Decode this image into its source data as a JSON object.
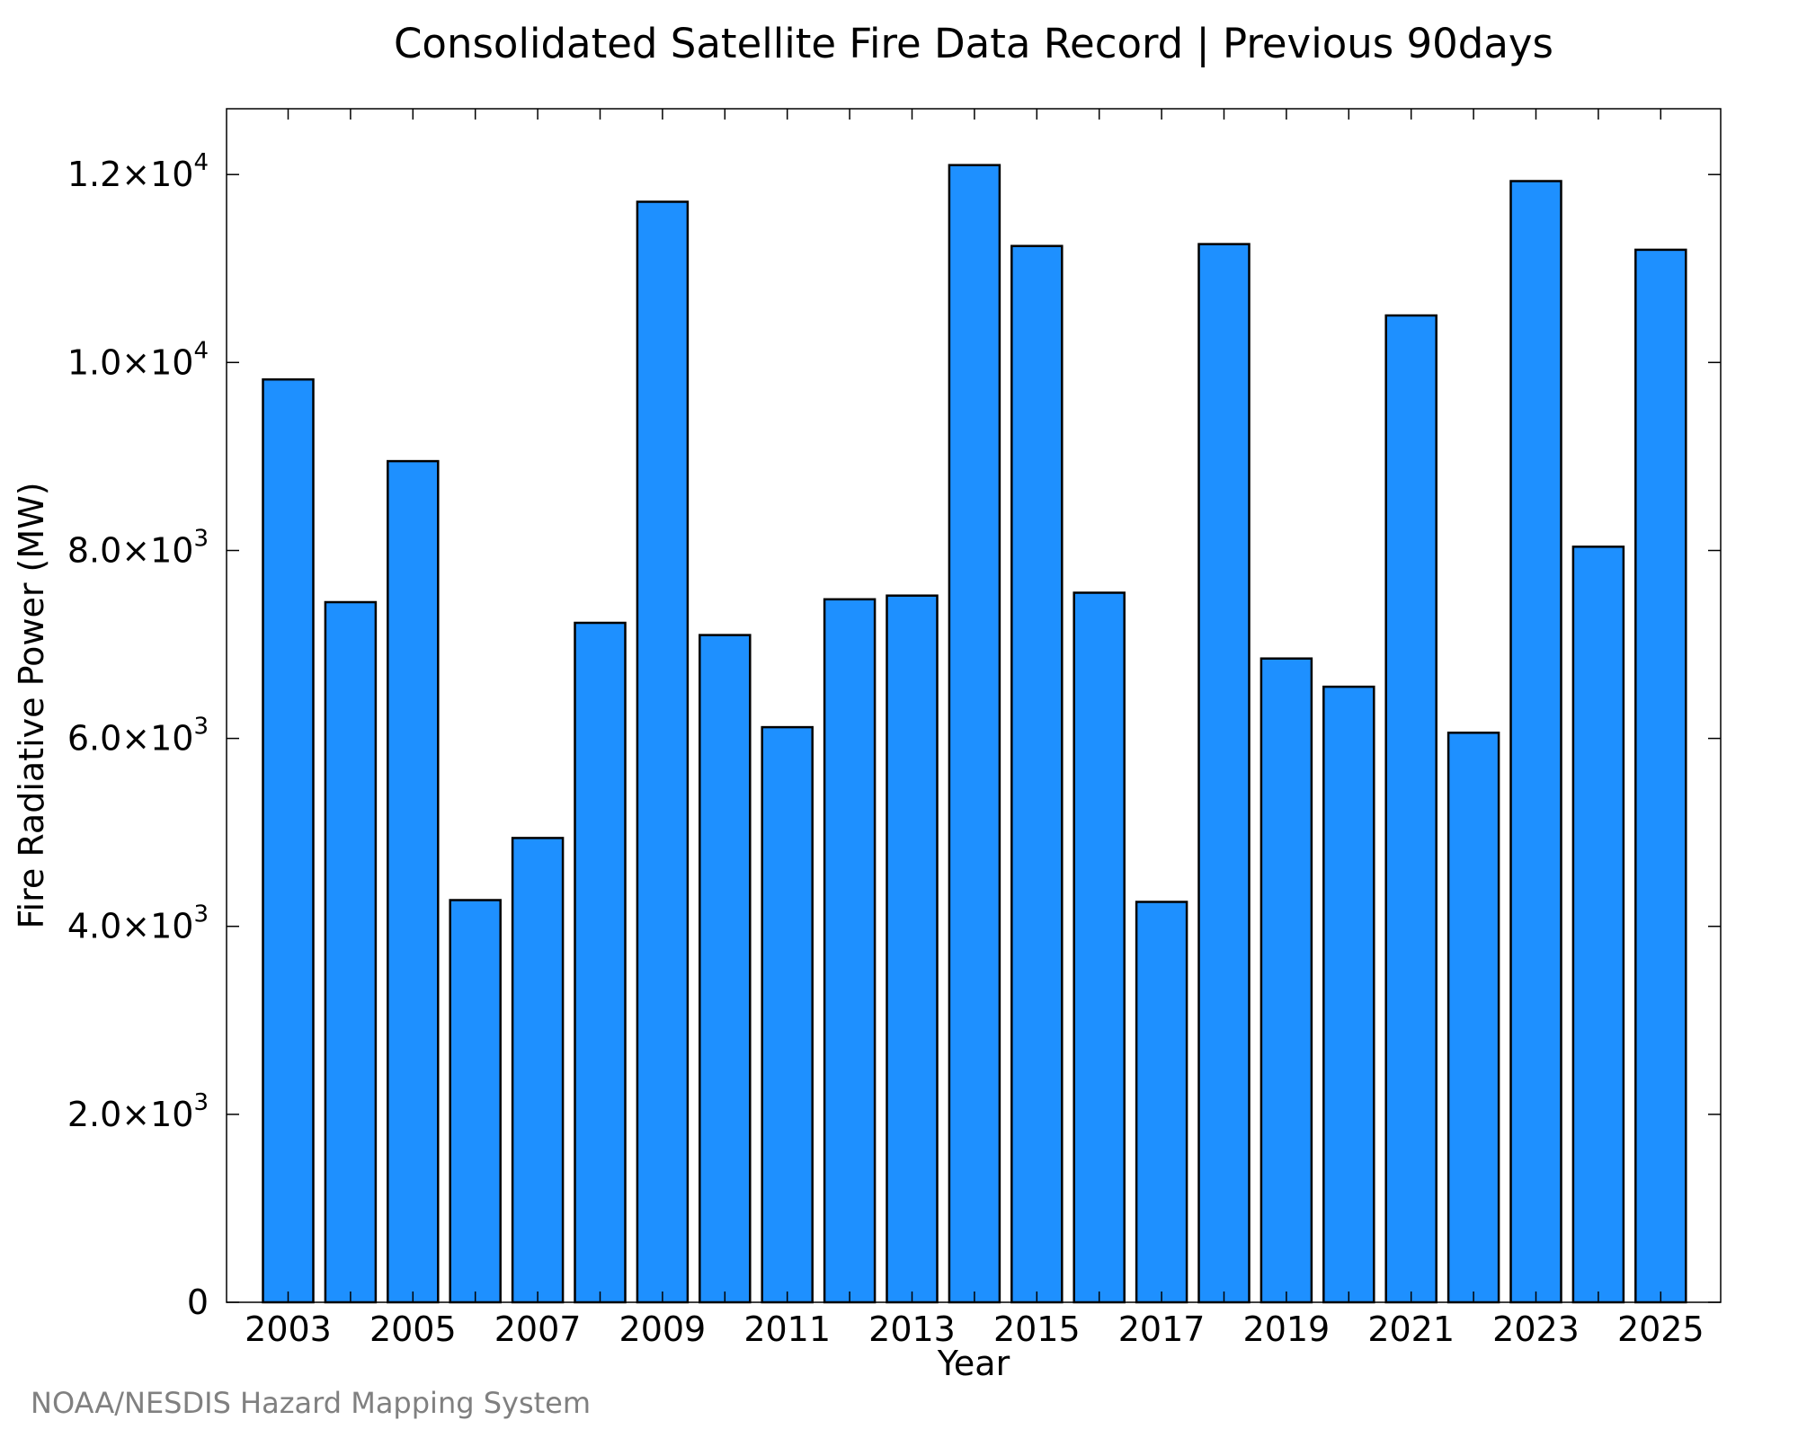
{
  "chart_data": {
    "type": "bar",
    "title": "Consolidated Satellite Fire Data Record | Previous 90days",
    "xlabel": "Year",
    "ylabel": "Fire Radiative Power (MW)",
    "categories": [
      "2003",
      "2004",
      "2005",
      "2006",
      "2007",
      "2008",
      "2009",
      "2010",
      "2011",
      "2012",
      "2013",
      "2014",
      "2015",
      "2016",
      "2017",
      "2018",
      "2019",
      "2020",
      "2021",
      "2022",
      "2023",
      "2024",
      "2025"
    ],
    "values": [
      9820,
      7450,
      8950,
      4280,
      4940,
      7230,
      11710,
      7100,
      6120,
      7480,
      7520,
      12100,
      11240,
      7550,
      4260,
      11260,
      6850,
      6550,
      10500,
      6060,
      11930,
      8040,
      11200
    ],
    "ylim": [
      0,
      12700
    ],
    "x_tick_labels": [
      "2003",
      "2005",
      "2007",
      "2009",
      "2011",
      "2013",
      "2015",
      "2017",
      "2019",
      "2021",
      "2023",
      "2025"
    ],
    "y_ticks": [
      {
        "value": 0,
        "mantissa": "0",
        "exponent": ""
      },
      {
        "value": 2000,
        "mantissa": "2.0×10",
        "exponent": "3"
      },
      {
        "value": 4000,
        "mantissa": "4.0×10",
        "exponent": "3"
      },
      {
        "value": 6000,
        "mantissa": "6.0×10",
        "exponent": "3"
      },
      {
        "value": 8000,
        "mantissa": "8.0×10",
        "exponent": "3"
      },
      {
        "value": 10000,
        "mantissa": "1.0×10",
        "exponent": "4"
      },
      {
        "value": 12000,
        "mantissa": "1.2×10",
        "exponent": "4"
      }
    ],
    "grid": false,
    "bar_color": "#1e90ff",
    "bar_edge_color": "#000000"
  },
  "credit": "NOAA/NESDIS Hazard Mapping System"
}
